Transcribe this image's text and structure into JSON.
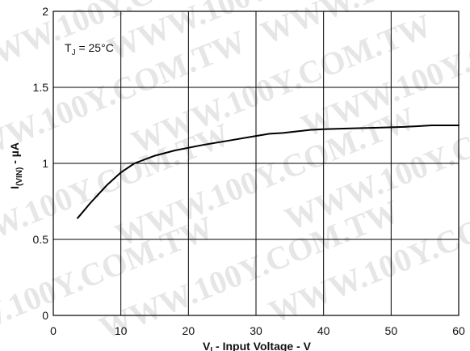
{
  "chart_data": {
    "type": "line",
    "title": "",
    "xlabel": "V",
    "xlabel_sub": "I",
    "xlabel_rest": " - Input Voltage - V",
    "ylabel": "I",
    "ylabel_sub": "(VIN)",
    "ylabel_rest": " - µA",
    "xlim": [
      0,
      60
    ],
    "ylim": [
      0,
      2
    ],
    "x_ticks": [
      0,
      10,
      20,
      30,
      40,
      50,
      60
    ],
    "y_ticks": [
      0,
      0.5,
      1,
      1.5,
      2
    ],
    "x_tick_labels": [
      "0",
      "10",
      "20",
      "30",
      "40",
      "50",
      "60"
    ],
    "y_tick_labels": [
      "0",
      "0.5",
      "1",
      "1.5",
      "2"
    ],
    "grid": true,
    "annotation": {
      "main": "T",
      "sub": "J",
      "rest": " = 25°C"
    },
    "watermark": "WWW.100Y.COM.TW",
    "series": [
      {
        "x": [
          3.6,
          5.5,
          8,
          10,
          12,
          15,
          18,
          22,
          26,
          30,
          32,
          34,
          36,
          38,
          40,
          44,
          48,
          52,
          54,
          56,
          60
        ],
        "y": [
          0.64,
          0.74,
          0.86,
          0.94,
          1.0,
          1.05,
          1.085,
          1.12,
          1.15,
          1.18,
          1.195,
          1.2,
          1.21,
          1.22,
          1.225,
          1.23,
          1.235,
          1.24,
          1.245,
          1.25,
          1.25
        ]
      }
    ]
  }
}
